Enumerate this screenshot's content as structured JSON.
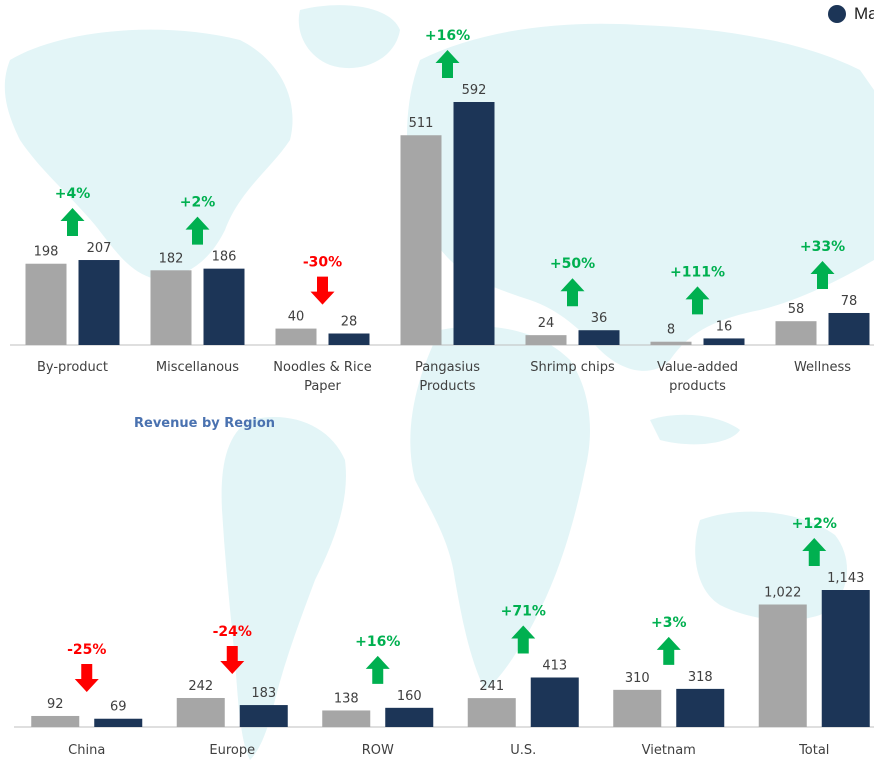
{
  "legend": {
    "label": "Ma",
    "color": "#1c3557"
  },
  "section_title": "Revenue by Region",
  "colors": {
    "prev": "#a6a6a6",
    "curr": "#1c3557",
    "up": "#00b050",
    "down": "#ff0000",
    "map": "#e3f5f7"
  },
  "chart_data": [
    {
      "type": "bar",
      "categories": [
        [
          "By-product"
        ],
        [
          "Miscellanous"
        ],
        [
          "Noodles & Rice",
          "Paper"
        ],
        [
          "Pangasius",
          "Products"
        ],
        [
          "Shrimp chips"
        ],
        [
          "Value-added",
          "products"
        ],
        [
          "Wellness"
        ]
      ],
      "series": [
        {
          "values": [
            198,
            182,
            40,
            511,
            24,
            8,
            58
          ]
        },
        {
          "name": "Ma",
          "values": [
            207,
            186,
            28,
            592,
            36,
            16,
            78
          ]
        }
      ],
      "value_labels": [
        [
          "198",
          "182",
          "40",
          "511",
          "24",
          "8",
          "58"
        ],
        [
          "207",
          "186",
          "28",
          "592",
          "36",
          "16",
          "78"
        ]
      ],
      "changes": [
        "+4%",
        "+2%",
        "-30%",
        "+16%",
        "+50%",
        "+111%",
        "+33%"
      ],
      "directions": [
        "up",
        "up",
        "down",
        "up",
        "up",
        "up",
        "up"
      ]
    },
    {
      "type": "bar",
      "title": "Revenue by Region",
      "categories": [
        [
          "China"
        ],
        [
          "Europe"
        ],
        [
          "ROW"
        ],
        [
          "U.S."
        ],
        [
          "Vietnam"
        ],
        [
          "Total"
        ]
      ],
      "series": [
        {
          "values": [
            92,
            242,
            138,
            241,
            310,
            1022
          ]
        },
        {
          "name": "Ma",
          "values": [
            69,
            183,
            160,
            413,
            318,
            1143
          ]
        }
      ],
      "value_labels": [
        [
          "92",
          "242",
          "138",
          "241",
          "310",
          "1,022"
        ],
        [
          "69",
          "183",
          "160",
          "413",
          "318",
          "1,143"
        ]
      ],
      "changes": [
        "-25%",
        "-24%",
        "+16%",
        "+71%",
        "+3%",
        "+12%"
      ],
      "directions": [
        "down",
        "down",
        "up",
        "up",
        "up",
        "up"
      ]
    }
  ]
}
